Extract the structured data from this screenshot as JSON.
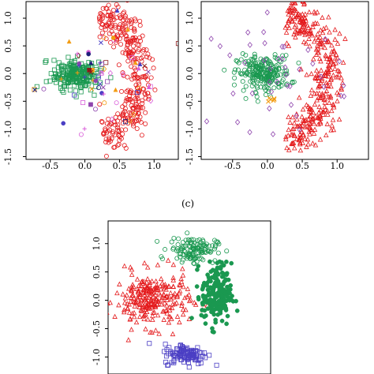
{
  "panel_labels": {
    "c": "(c)"
  },
  "colors": {
    "red": "#e41a1c",
    "green": "#1a9850",
    "blue": "#4b3fc4",
    "purple": "#8e44ad",
    "orange": "#f39c12",
    "magenta": "#d95fd9",
    "darkred": "#8b1a1a",
    "navy": "#1f1f7a"
  },
  "chart_data": [
    {
      "id": "top-left",
      "type": "scatter",
      "xlim": [
        -0.85,
        1.35
      ],
      "ylim": [
        -1.55,
        1.3
      ],
      "xticks": [
        "-0.5",
        "0.0",
        "0.5",
        "1.0"
      ],
      "yticks": [
        "-1.5",
        "-1.0",
        "-0.5",
        "0.0",
        "0.5",
        "1.0"
      ],
      "clusters": [
        {
          "shape": "arc",
          "cx": 0.15,
          "cy": -0.05,
          "r": 0.82,
          "angle_from": -80,
          "angle_to": 85,
          "width": 0.28,
          "n": 330,
          "marker": "circle",
          "color": "red"
        },
        {
          "shape": "ellipse",
          "cx": -0.15,
          "cy": -0.02,
          "rx": 0.32,
          "ry": 0.28,
          "n": 230,
          "marker": "square",
          "color": "green"
        },
        {
          "shape": "ellipse",
          "cx": 0.2,
          "cy": 0.0,
          "rx": 0.9,
          "ry": 0.95,
          "n": 70,
          "marker": "mixed",
          "color": "mixed"
        }
      ]
    },
    {
      "id": "top-right",
      "type": "scatter",
      "xlim": [
        -0.95,
        1.45
      ],
      "ylim": [
        -1.55,
        1.3
      ],
      "xticks": [
        "-0.5",
        "0.0",
        "0.5",
        "1.0"
      ],
      "yticks": [
        "-1.5",
        "-1.0",
        "-0.5",
        "0.0",
        "0.5",
        "1.0"
      ],
      "clusters": [
        {
          "shape": "arc",
          "cx": 0.2,
          "cy": -0.05,
          "r": 0.85,
          "angle_from": -85,
          "angle_to": 85,
          "width": 0.32,
          "n": 360,
          "marker": "triangle",
          "color": "red"
        },
        {
          "shape": "ellipse",
          "cx": -0.05,
          "cy": 0.0,
          "rx": 0.38,
          "ry": 0.32,
          "n": 230,
          "marker": "circle",
          "color": "green"
        },
        {
          "shape": "ellipse",
          "cx": 0.2,
          "cy": 0.0,
          "rx": 1.0,
          "ry": 1.0,
          "n": 45,
          "marker": "diamond",
          "color": "purple"
        },
        {
          "shape": "ellipse",
          "cx": 0.05,
          "cy": -0.5,
          "rx": 0.08,
          "ry": 0.06,
          "n": 6,
          "marker": "cross",
          "color": "orange"
        }
      ]
    },
    {
      "id": "bottom",
      "type": "scatter",
      "xlim": [
        -1.2,
        1.2
      ],
      "ylim": [
        -1.3,
        1.4
      ],
      "xticks": [],
      "yticks": [
        "-1.0",
        "-0.5",
        "0.0",
        "0.5",
        "1.0"
      ],
      "clusters": [
        {
          "shape": "ellipse",
          "cx": -0.55,
          "cy": 0.0,
          "rx": 0.55,
          "ry": 0.48,
          "n": 260,
          "marker": "triangle",
          "color": "red"
        },
        {
          "shape": "ellipse",
          "cx": 0.05,
          "cy": 0.9,
          "rx": 0.35,
          "ry": 0.22,
          "n": 130,
          "marker": "circle",
          "color": "green"
        },
        {
          "shape": "ellipse",
          "cx": 0.4,
          "cy": 0.1,
          "rx": 0.22,
          "ry": 0.55,
          "n": 200,
          "marker": "filled-circle",
          "color": "green"
        },
        {
          "shape": "ellipse",
          "cx": -0.05,
          "cy": -0.95,
          "rx": 0.32,
          "ry": 0.18,
          "n": 110,
          "marker": "square",
          "color": "blue"
        }
      ]
    }
  ]
}
